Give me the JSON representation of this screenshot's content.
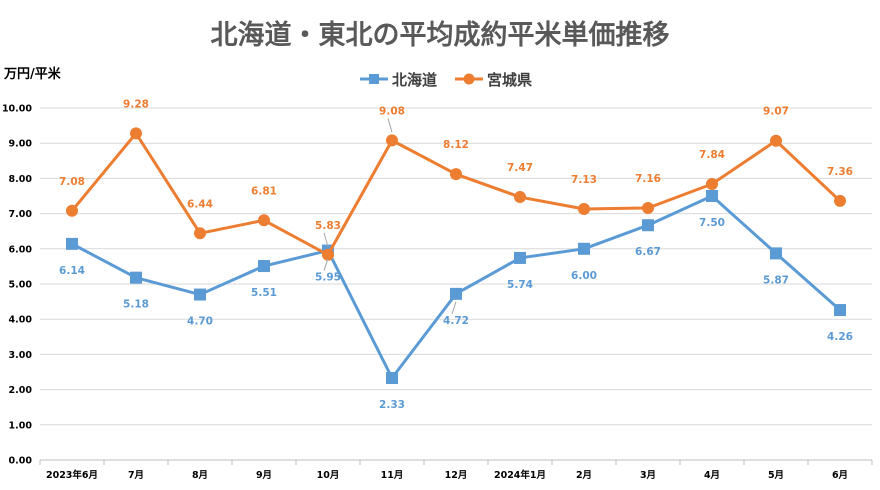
{
  "chart_data": {
    "type": "line",
    "title": "北海道・東北の平均成約平米単価推移",
    "ylabel": "万円/平米",
    "xlabel": "",
    "categories": [
      "2023年6月",
      "7月",
      "8月",
      "9月",
      "10月",
      "11月",
      "12月",
      "2024年1月",
      "2月",
      "3月",
      "4月",
      "5月",
      "6月"
    ],
    "ylim": [
      0,
      10
    ],
    "yticks": [
      "0.00",
      "1.00",
      "2.00",
      "3.00",
      "4.00",
      "5.00",
      "6.00",
      "7.00",
      "8.00",
      "9.00",
      "10.00"
    ],
    "grid": true,
    "legend": "top",
    "series": [
      {
        "name": "北海道",
        "marker": "square",
        "color": "#5b9bd5",
        "values": [
          6.14,
          5.18,
          4.7,
          5.51,
          5.95,
          2.33,
          4.72,
          5.74,
          6.0,
          6.67,
          7.5,
          5.87,
          4.26
        ],
        "labels": [
          "6.14",
          "5.18",
          "4.70",
          "5.51",
          "5.95",
          "2.33",
          "4.72",
          "5.74",
          "6.00",
          "6.67",
          "7.50",
          "5.87",
          "4.26"
        ]
      },
      {
        "name": "宮城県",
        "marker": "circle",
        "color": "#ed7d31",
        "values": [
          7.08,
          9.28,
          6.44,
          6.81,
          5.83,
          9.08,
          8.12,
          7.47,
          7.13,
          7.16,
          7.84,
          9.07,
          7.36
        ],
        "labels": [
          "7.08",
          "9.28",
          "6.44",
          "6.81",
          "5.83",
          "9.08",
          "8.12",
          "7.47",
          "7.13",
          "7.16",
          "7.84",
          "9.07",
          "7.36"
        ]
      }
    ]
  }
}
